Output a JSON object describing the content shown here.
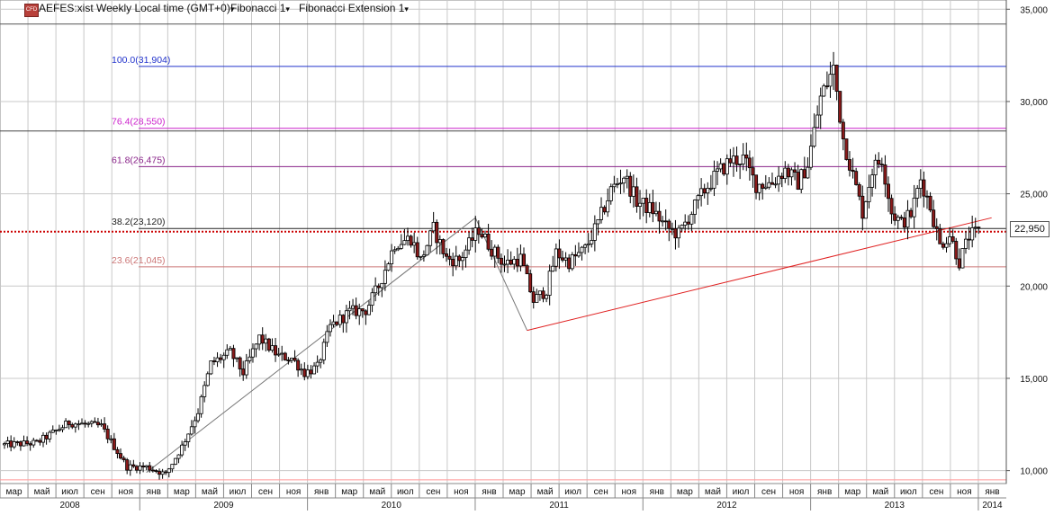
{
  "header": {
    "cfd_badge": "CFD",
    "title": "AEFES:xist Weekly Local time (GMT+0)",
    "indicator_1": "Fibonacci 1",
    "indicator_2": "Fibonacci Extension 1",
    "dropdown_glyph": "▾"
  },
  "price_badge": "22,950",
  "colors": {
    "background": "#ffffff",
    "grid": "#c8c8c8",
    "bull_candle": "#ffffff",
    "bear_candle": "#8b1a1a",
    "candle_outline": "#000000",
    "trendline_red": "#e02020",
    "fib_100": "#2233cc",
    "fib_764": "#cc22cc",
    "fib_618": "#882288",
    "fib_382": "#222222",
    "fib_236": "#cc7777",
    "current_price_line": "#cc0000"
  },
  "chart_data": {
    "type": "candlestick",
    "title": "AEFES:xist Weekly",
    "ylim": [
      9300,
      35500
    ],
    "y_ticks": [
      "10,000",
      "15,000",
      "20,000",
      "25,000",
      "30,000",
      "35,000"
    ],
    "x_month_labels": [
      "мар",
      "май",
      "июл",
      "сен",
      "ноя",
      "янв",
      "мар",
      "май",
      "июл",
      "сен",
      "ноя",
      "янв",
      "мар",
      "май",
      "июл",
      "сен",
      "ноя",
      "янв",
      "мар",
      "май",
      "июл",
      "сен",
      "ноя",
      "янв",
      "мар",
      "май",
      "июл",
      "сен",
      "ноя",
      "янв",
      "мар",
      "май",
      "июл",
      "сен",
      "ноя",
      "янв"
    ],
    "x_year_labels": [
      "2008",
      "2009",
      "2010",
      "2011",
      "2012",
      "2013",
      "2014"
    ],
    "grid": true,
    "fibonacci_levels": [
      {
        "label": "100.0(31,904)",
        "value": 31904
      },
      {
        "label": "76.4(28,550)",
        "value": 28550
      },
      {
        "label": "61.8(26,475)",
        "value": 26475
      },
      {
        "label": "38.2(23,120)",
        "value": 23120
      },
      {
        "label": "23.6(21,045)",
        "value": 21045
      }
    ],
    "horizontal_lines": [
      34200,
      28400,
      9500
    ],
    "current_price": 22950,
    "price_path": [
      {
        "week": 0,
        "price": 11400
      },
      {
        "week": 10,
        "price": 11500
      },
      {
        "week": 20,
        "price": 12600
      },
      {
        "week": 30,
        "price": 12400
      },
      {
        "week": 38,
        "price": 10200
      },
      {
        "week": 44,
        "price": 10200
      },
      {
        "week": 50,
        "price": 9800
      },
      {
        "week": 55,
        "price": 11300
      },
      {
        "week": 60,
        "price": 13200
      },
      {
        "week": 64,
        "price": 15800
      },
      {
        "week": 70,
        "price": 16400
      },
      {
        "week": 74,
        "price": 15300
      },
      {
        "week": 79,
        "price": 17200
      },
      {
        "week": 85,
        "price": 16200
      },
      {
        "week": 89,
        "price": 16100
      },
      {
        "week": 93,
        "price": 15300
      },
      {
        "week": 97,
        "price": 15600
      },
      {
        "week": 101,
        "price": 17800
      },
      {
        "week": 107,
        "price": 18600
      },
      {
        "week": 112,
        "price": 18700
      },
      {
        "week": 116,
        "price": 20000
      },
      {
        "week": 121,
        "price": 22300
      },
      {
        "week": 126,
        "price": 22600
      },
      {
        "week": 129,
        "price": 21400
      },
      {
        "week": 133,
        "price": 23100
      },
      {
        "week": 137,
        "price": 21500
      },
      {
        "week": 141,
        "price": 21400
      },
      {
        "week": 147,
        "price": 23100
      },
      {
        "week": 151,
        "price": 22000
      },
      {
        "week": 155,
        "price": 21200
      },
      {
        "week": 160,
        "price": 21500
      },
      {
        "week": 164,
        "price": 19200
      },
      {
        "week": 168,
        "price": 19800
      },
      {
        "week": 171,
        "price": 21800
      },
      {
        "week": 175,
        "price": 21300
      },
      {
        "week": 180,
        "price": 22000
      },
      {
        "week": 184,
        "price": 23400
      },
      {
        "week": 188,
        "price": 25200
      },
      {
        "week": 192,
        "price": 26000
      },
      {
        "week": 196,
        "price": 24600
      },
      {
        "week": 201,
        "price": 24100
      },
      {
        "week": 205,
        "price": 23200
      },
      {
        "week": 209,
        "price": 22800
      },
      {
        "week": 213,
        "price": 24000
      },
      {
        "week": 217,
        "price": 25200
      },
      {
        "week": 221,
        "price": 26100
      },
      {
        "week": 225,
        "price": 26800
      },
      {
        "week": 229,
        "price": 26900
      },
      {
        "week": 233,
        "price": 25500
      },
      {
        "week": 238,
        "price": 25600
      },
      {
        "week": 242,
        "price": 26300
      },
      {
        "week": 246,
        "price": 25600
      },
      {
        "week": 249,
        "price": 26600
      },
      {
        "week": 253,
        "price": 30200
      },
      {
        "week": 257,
        "price": 31800
      },
      {
        "week": 260,
        "price": 28000
      },
      {
        "week": 263,
        "price": 26000
      },
      {
        "week": 266,
        "price": 24000
      },
      {
        "week": 269,
        "price": 26300
      },
      {
        "week": 272,
        "price": 26900
      },
      {
        "week": 275,
        "price": 24000
      },
      {
        "week": 278,
        "price": 23400
      },
      {
        "week": 281,
        "price": 23900
      },
      {
        "week": 284,
        "price": 25800
      },
      {
        "week": 287,
        "price": 24300
      },
      {
        "week": 290,
        "price": 22200
      },
      {
        "week": 293,
        "price": 22800
      },
      {
        "week": 296,
        "price": 21300
      },
      {
        "week": 299,
        "price": 22700
      },
      {
        "week": 302,
        "price": 22950
      }
    ],
    "zigzag_lines": [
      {
        "color": "#777777",
        "points": [
          {
            "week": 44,
            "price": 9900
          },
          {
            "week": 146,
            "price": 23700
          },
          {
            "week": 162,
            "price": 17600
          }
        ]
      },
      {
        "color": "#e02020",
        "points": [
          {
            "week": 162,
            "price": 17600
          },
          {
            "week": 306,
            "price": 23700
          }
        ]
      }
    ]
  }
}
